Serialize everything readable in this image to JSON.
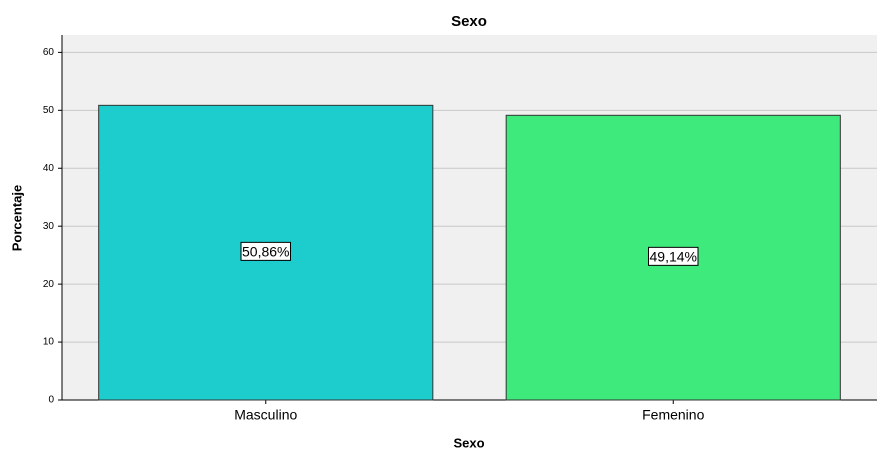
{
  "chart_data": {
    "type": "bar",
    "title": "Sexo",
    "x_label": "Sexo",
    "y_label": "Porcentaje",
    "categories": [
      "Masculino",
      "Femenino"
    ],
    "values": [
      50.86,
      49.14
    ],
    "value_labels": [
      "50,86%",
      "49,14%"
    ],
    "colors": [
      "#1dcdcd",
      "#3fea7c"
    ],
    "ylim": [
      0,
      63
    ],
    "yticks": [
      0,
      10,
      20,
      30,
      40,
      50,
      60
    ],
    "grid": true
  }
}
